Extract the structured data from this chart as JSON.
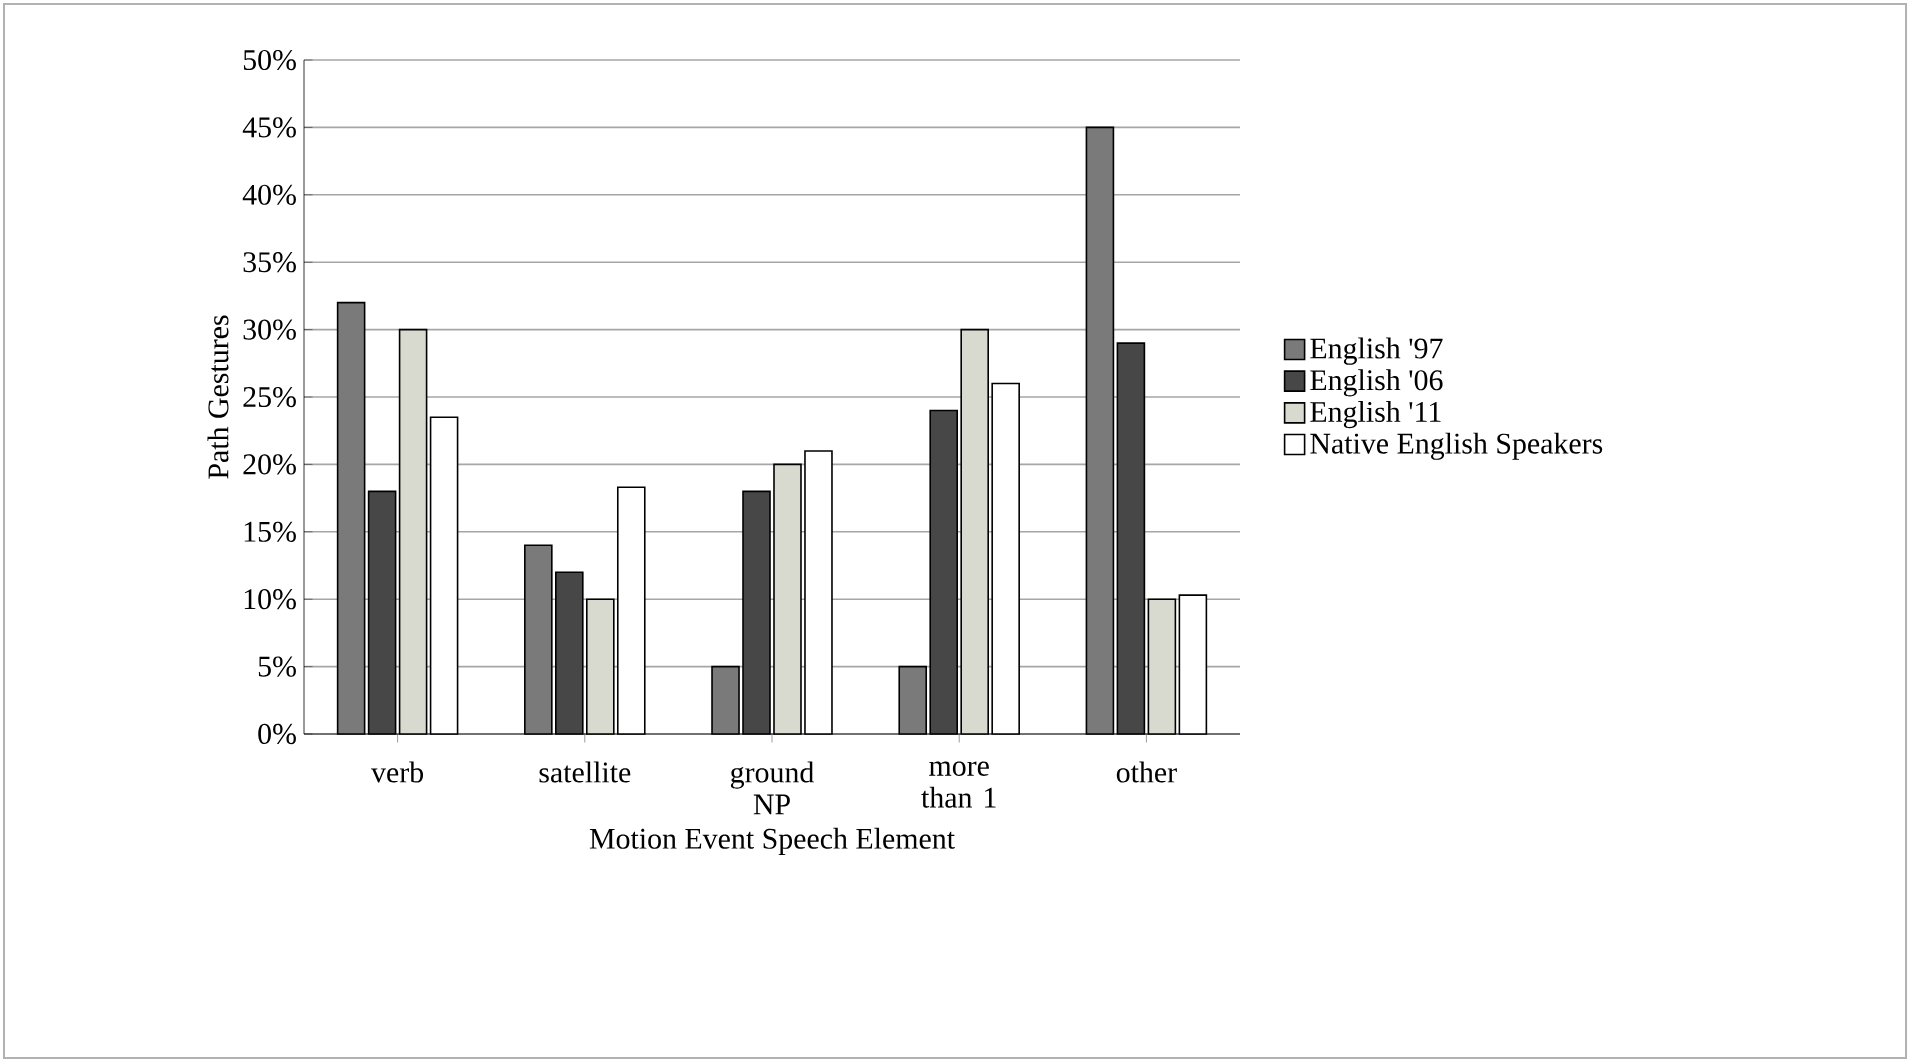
{
  "chart_data": {
    "type": "bar",
    "xlabel": "Motion Event Speech Element",
    "ylabel": "Path Gestures",
    "categories": [
      "verb",
      "satellite",
      "ground NP",
      "more than 1",
      "other"
    ],
    "series": [
      {
        "name": "English '97",
        "color": "#7a7a7a",
        "values": [
          32,
          14,
          5,
          5,
          45
        ]
      },
      {
        "name": "English '06",
        "color": "#474747",
        "values": [
          18,
          12,
          18,
          24,
          29
        ]
      },
      {
        "name": "English '11",
        "color": "#d8dad0",
        "values": [
          30,
          10,
          20,
          30,
          10
        ]
      },
      {
        "name": "Native English Speakers",
        "color": "#ffffff",
        "values": [
          23.5,
          18.3,
          21,
          26,
          10.3
        ]
      }
    ],
    "ylim": [
      0,
      50
    ],
    "yticks": [
      {
        "value": 0,
        "label": "0%"
      },
      {
        "value": 5,
        "label": "5%"
      },
      {
        "value": 10,
        "label": "10%"
      },
      {
        "value": 15,
        "label": "15%"
      },
      {
        "value": 20,
        "label": "20%"
      },
      {
        "value": 25,
        "label": "25%"
      },
      {
        "value": 30,
        "label": "30%"
      },
      {
        "value": 35,
        "label": "35%"
      },
      {
        "value": 40,
        "label": "40%"
      },
      {
        "value": 45,
        "label": "45%"
      },
      {
        "value": 50,
        "label": "50%"
      }
    ],
    "grid": "y",
    "legend": "right"
  }
}
